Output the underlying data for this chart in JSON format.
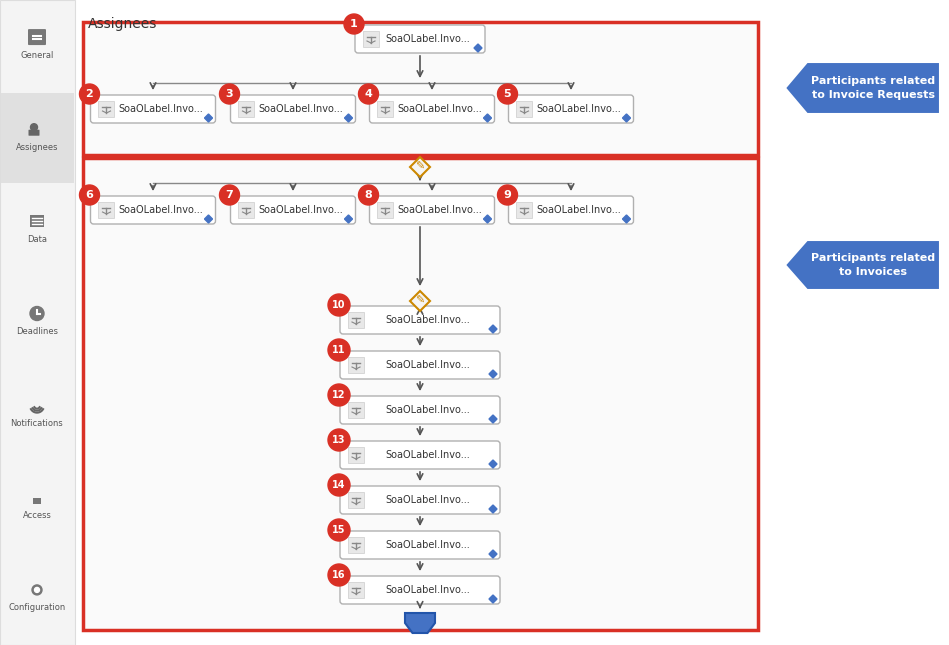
{
  "title": "Assignees",
  "main_bg": "#ffffff",
  "sidebar_bg": "#f4f4f4",
  "sidebar_border": "#dddddd",
  "sidebar_items": [
    "General",
    "Assignees",
    "Data",
    "Deadlines",
    "Notifications",
    "Access",
    "Configuration"
  ],
  "red_circle_color": "#d93025",
  "red_circle_text": "#ffffff",
  "box_bg": "#ffffff",
  "box_border": "#aaaaaa",
  "box_text": "SoaOLabel.Invo...",
  "arrow_color": "#555555",
  "red_border_color": "#d93025",
  "blue_arrow_color": "#4472c4",
  "blue_arrow_text_color": "#ffffff",
  "arrow1_text": "Participants related\nto Invoice Requests",
  "arrow2_text": "Participants related\nto Invoices",
  "diamond_color": "#4472c4",
  "connector_color": "#cc8800",
  "tray_color": "#4472c4"
}
